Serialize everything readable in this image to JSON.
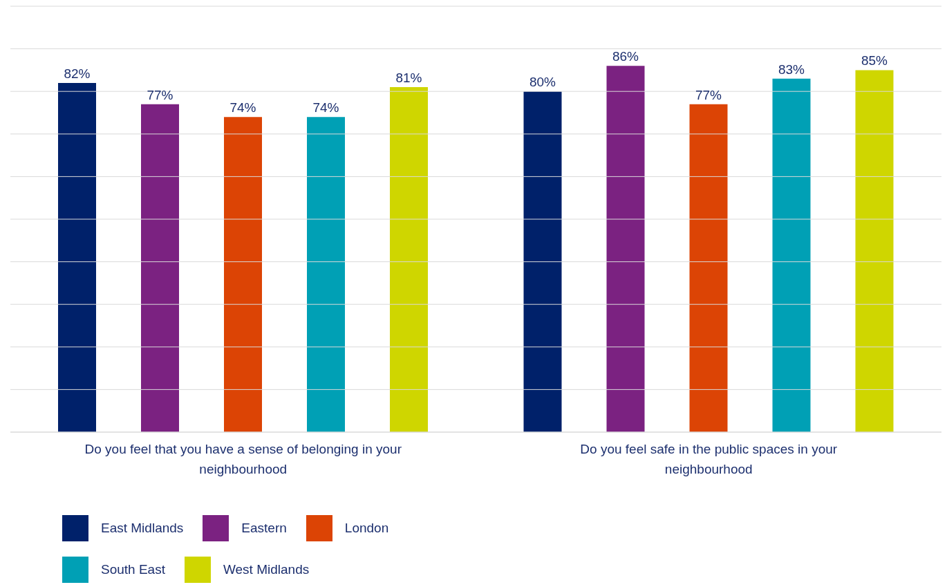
{
  "chart_data": {
    "type": "bar",
    "categories": [
      "Do you feel that you have a sense of belonging in your neighbourhood",
      "Do you feel safe in the public spaces in your neighbourhood"
    ],
    "series": [
      {
        "name": "East Midlands",
        "color": "#00216a",
        "values": [
          82,
          80
        ],
        "value_labels": [
          "82%",
          "80%"
        ]
      },
      {
        "name": "Eastern",
        "color": "#7b2281",
        "values": [
          77,
          86
        ],
        "value_labels": [
          "77%",
          "86%"
        ]
      },
      {
        "name": "London",
        "color": "#dc4405",
        "values": [
          74,
          77
        ],
        "value_labels": [
          "74%",
          "77%"
        ]
      },
      {
        "name": "South East",
        "color": "#00a0b5",
        "values": [
          74,
          83
        ],
        "value_labels": [
          "74%",
          "83%"
        ]
      },
      {
        "name": "West Midlands",
        "color": "#cfd600",
        "values": [
          81,
          85
        ],
        "value_labels": [
          "81%",
          "85%"
        ]
      }
    ],
    "ylim": [
      0,
      100
    ],
    "yticks": [
      {
        "value": 0,
        "label": null
      },
      {
        "value": 10,
        "label": null
      },
      {
        "value": 20,
        "label": null
      },
      {
        "value": 30,
        "label": null
      },
      {
        "value": 40,
        "label": null
      },
      {
        "value": 50,
        "label": null
      },
      {
        "value": 60,
        "label": null
      },
      {
        "value": 70,
        "label": null
      },
      {
        "value": 80,
        "label": null
      },
      {
        "value": 90,
        "label": null
      },
      {
        "value": 100,
        "label": null
      }
    ],
    "grid": "y",
    "tick_labels": "x",
    "legend": "bottom left"
  }
}
